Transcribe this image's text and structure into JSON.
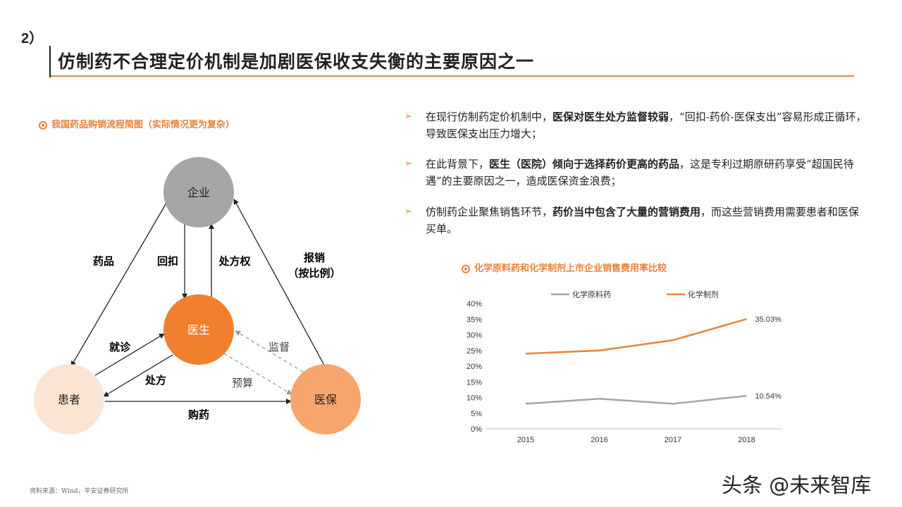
{
  "header": {
    "section_number": "2）",
    "title": "仿制药不合理定价机制是加剧医保收支失衡的主要原因之一"
  },
  "flow": {
    "heading": "我国药品购销流程简图（实际情况更为复杂）",
    "nodes": {
      "enterprise": "企业",
      "doctor": "医生",
      "patient": "患者",
      "insurance": "医保"
    },
    "labels": {
      "drug": "药品",
      "kickback": "回扣",
      "prescription_right": "处方权",
      "reimburse": "报销",
      "reimburse_ratio": "（按比例）",
      "visit": "就诊",
      "prescribe": "处方",
      "supervise": "监督",
      "budget": "预算",
      "buy_drug": "购药"
    },
    "colors": {
      "enterprise": "#A6A6A6",
      "doctor": "#F0802E",
      "patient": "#FCE4D3",
      "insurance": "#F7A56C"
    }
  },
  "bullets": [
    {
      "pre": "在现行仿制药定价机制中，",
      "bold": "医保对医生处方监督较弱",
      "post": "，“回扣-药价-医保支出”容易形成正循环，导致医保支出压力增大；"
    },
    {
      "pre": "在此背景下，",
      "bold": "医生（医院）倾向于选择药价更高的药品",
      "post": "，这是专利过期原研药享受“超国民待遇”的主要原因之一，造成医保资金浪费；"
    },
    {
      "pre": "仿制药企业聚焦销售环节，",
      "bold": "药价当中包含了大量的营销费用",
      "post": "，而这些营销费用需要患者和医保买单。"
    }
  ],
  "chart_heading": "化学原料药和化学制剂上市企业销售费用率比较",
  "chart_data": {
    "type": "line",
    "x": [
      "2015",
      "2016",
      "2017",
      "2018"
    ],
    "series": [
      {
        "name": "化学原料药",
        "values": [
          8.0,
          9.6,
          8.0,
          10.54
        ],
        "color": "#A6A6A6",
        "end_label": "10.54%"
      },
      {
        "name": "化学制剂",
        "values": [
          24.0,
          25.0,
          28.3,
          35.03
        ],
        "color": "#E8823A",
        "end_label": "35.03%"
      }
    ],
    "ylim": [
      0,
      40
    ],
    "yticks": [
      "0%",
      "5%",
      "10%",
      "15%",
      "20%",
      "25%",
      "30%",
      "35%",
      "40%"
    ],
    "legend": "top"
  },
  "footer": {
    "source": "资料来源：Wind，平安证券研究所",
    "watermark": "头条 @未来智库"
  }
}
